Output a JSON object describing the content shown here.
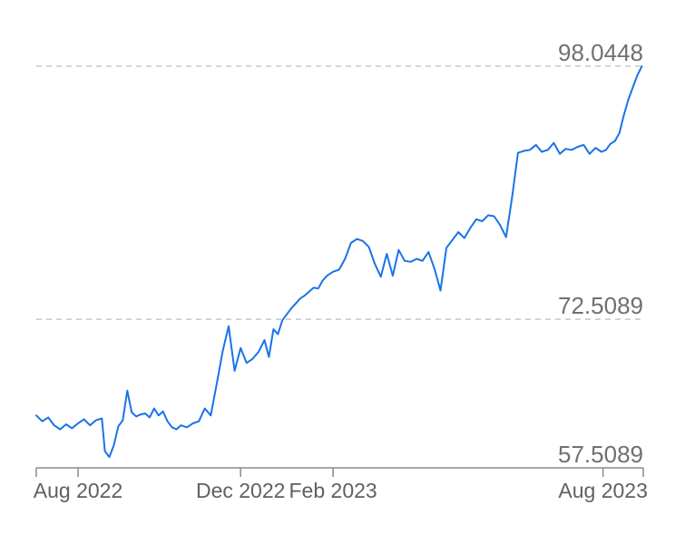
{
  "colors": {
    "line": "#1a73e8",
    "grid": "#c8c8c8",
    "axis": "#8a8a8a",
    "label": "#707070"
  },
  "chart_data": {
    "type": "line",
    "title": "",
    "xlabel": "",
    "ylabel": "",
    "grid": true,
    "legend": "none",
    "y_ticks": [
      {
        "value": 98.0448,
        "label": "98.0448"
      },
      {
        "value": 72.5089,
        "label": "72.5089"
      },
      {
        "value": 57.5089,
        "label": "57.5089"
      }
    ],
    "x_ticks": [
      {
        "date": "2022-07-17",
        "label": ""
      },
      {
        "date": "2022-08-14",
        "label": "Aug 2022"
      },
      {
        "date": "2022-12-01",
        "label": "Dec 2022"
      },
      {
        "date": "2023-02-01",
        "label": "Feb 2023"
      },
      {
        "date": "2023-08-01",
        "label": "Aug 2023"
      },
      {
        "date": "2023-08-28",
        "label": ""
      }
    ],
    "ylim": [
      57.5089,
      98.0448
    ],
    "xlim": [
      "2022-07-17",
      "2023-08-28"
    ],
    "series": [
      {
        "name": "",
        "x": [
          "2022-07-17",
          "2022-07-21",
          "2022-07-25",
          "2022-07-29",
          "2022-08-02",
          "2022-08-06",
          "2022-08-10",
          "2022-08-14",
          "2022-08-18",
          "2022-08-22",
          "2022-08-26",
          "2022-08-30",
          "2022-09-01",
          "2022-09-04",
          "2022-09-07",
          "2022-09-10",
          "2022-09-13",
          "2022-09-16",
          "2022-09-19",
          "2022-09-22",
          "2022-09-25",
          "2022-09-28",
          "2022-10-01",
          "2022-10-04",
          "2022-10-07",
          "2022-10-10",
          "2022-10-13",
          "2022-10-16",
          "2022-10-19",
          "2022-10-22",
          "2022-10-26",
          "2022-10-30",
          "2022-11-03",
          "2022-11-07",
          "2022-11-11",
          "2022-11-15",
          "2022-11-19",
          "2022-11-23",
          "2022-11-27",
          "2022-12-01",
          "2022-12-05",
          "2022-12-09",
          "2022-12-13",
          "2022-12-17",
          "2022-12-20",
          "2022-12-23",
          "2022-12-26",
          "2022-12-29",
          "2023-01-01",
          "2023-01-04",
          "2023-01-07",
          "2023-01-10",
          "2023-01-13",
          "2023-01-16",
          "2023-01-19",
          "2023-01-22",
          "2023-01-25",
          "2023-01-28",
          "2023-02-01",
          "2023-02-05",
          "2023-02-09",
          "2023-02-13",
          "2023-02-17",
          "2023-02-21",
          "2023-02-25",
          "2023-03-01",
          "2023-03-05",
          "2023-03-09",
          "2023-03-13",
          "2023-03-17",
          "2023-03-21",
          "2023-03-25",
          "2023-03-29",
          "2023-04-02",
          "2023-04-06",
          "2023-04-10",
          "2023-04-14",
          "2023-04-18",
          "2023-04-22",
          "2023-04-26",
          "2023-04-30",
          "2023-05-04",
          "2023-05-08",
          "2023-05-12",
          "2023-05-16",
          "2023-05-20",
          "2023-05-24",
          "2023-05-28",
          "2023-06-01",
          "2023-06-05",
          "2023-06-09",
          "2023-06-13",
          "2023-06-17",
          "2023-06-21",
          "2023-06-25",
          "2023-06-29",
          "2023-07-03",
          "2023-07-07",
          "2023-07-11",
          "2023-07-15",
          "2023-07-19",
          "2023-07-23",
          "2023-07-27",
          "2023-07-31",
          "2023-08-03",
          "2023-08-06",
          "2023-08-09",
          "2023-08-12",
          "2023-08-15",
          "2023-08-18",
          "2023-08-21",
          "2023-08-24",
          "2023-08-27"
        ],
        "values": [
          62.8,
          62.2,
          62.6,
          61.8,
          61.4,
          61.9,
          61.5,
          62.0,
          62.4,
          61.8,
          62.3,
          62.5,
          59.2,
          58.6,
          59.8,
          61.7,
          62.3,
          65.3,
          63.1,
          62.7,
          62.9,
          63.0,
          62.6,
          63.5,
          62.8,
          63.2,
          62.2,
          61.6,
          61.4,
          61.8,
          61.6,
          62.0,
          62.2,
          63.5,
          62.8,
          66.0,
          69.3,
          71.8,
          67.3,
          69.6,
          68.1,
          68.5,
          69.2,
          70.4,
          68.7,
          71.5,
          71.0,
          72.4,
          73.0,
          73.6,
          74.1,
          74.6,
          74.9,
          75.3,
          75.7,
          75.6,
          76.4,
          76.9,
          77.3,
          77.5,
          78.6,
          80.2,
          80.6,
          80.4,
          79.8,
          78.1,
          76.8,
          79.1,
          76.9,
          79.5,
          78.4,
          78.3,
          78.6,
          78.4,
          79.3,
          77.6,
          75.4,
          79.7,
          80.5,
          81.3,
          80.7,
          81.7,
          82.6,
          82.4,
          83.0,
          82.9,
          82.0,
          80.8,
          84.8,
          89.3,
          89.5,
          89.6,
          90.1,
          89.4,
          89.6,
          90.3,
          89.2,
          89.7,
          89.6,
          89.9,
          90.1,
          89.2,
          89.8,
          89.4,
          89.6,
          90.2,
          90.5,
          91.3,
          93.1,
          94.7,
          95.9,
          97.1,
          98.0448
        ]
      }
    ]
  }
}
